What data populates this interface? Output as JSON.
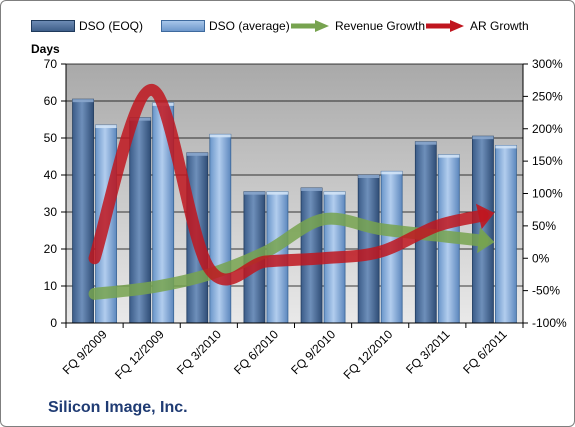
{
  "chart_data": {
    "type": "bar",
    "categories": [
      "FQ 9/2009",
      "FQ 12/2009",
      "FQ 3/2010",
      "FQ 6/2010",
      "FQ 9/2010",
      "FQ 12/2010",
      "FQ 3/2011",
      "FQ 6/2011"
    ],
    "series": [
      {
        "name": "DSO (EOQ)",
        "axis": "left",
        "kind": "bar",
        "color": "#4f6f9a",
        "values": [
          60.5,
          55.5,
          46,
          35.5,
          36.5,
          40,
          49,
          50.5
        ]
      },
      {
        "name": "DSO (average)",
        "axis": "left",
        "kind": "bar",
        "color": "#7fa7d6",
        "values": [
          53.5,
          59.5,
          51,
          35.5,
          35.5,
          41,
          45.5,
          48
        ]
      },
      {
        "name": "Revenue Growth",
        "axis": "right",
        "kind": "arrow-line",
        "color": "#77a34f",
        "values": [
          -55,
          -45,
          -25,
          10,
          60,
          45,
          35,
          25
        ]
      },
      {
        "name": "AR Growth",
        "axis": "right",
        "kind": "arrow-line",
        "color": "#c0161f",
        "values": [
          0,
          260,
          -15,
          -5,
          0,
          10,
          50,
          70
        ]
      }
    ],
    "ylabel": "Days",
    "ylim": [
      0,
      70
    ],
    "y_ticks": [
      "0",
      "10",
      "20",
      "30",
      "40",
      "50",
      "60",
      "70"
    ],
    "y2lim": [
      -100,
      300
    ],
    "y2_ticks": [
      "-100%",
      "-50%",
      "0%",
      "50%",
      "100%",
      "150%",
      "200%",
      "250%",
      "300%"
    ],
    "legend_position": "top",
    "grid": true
  },
  "company": "Silicon Image, Inc."
}
